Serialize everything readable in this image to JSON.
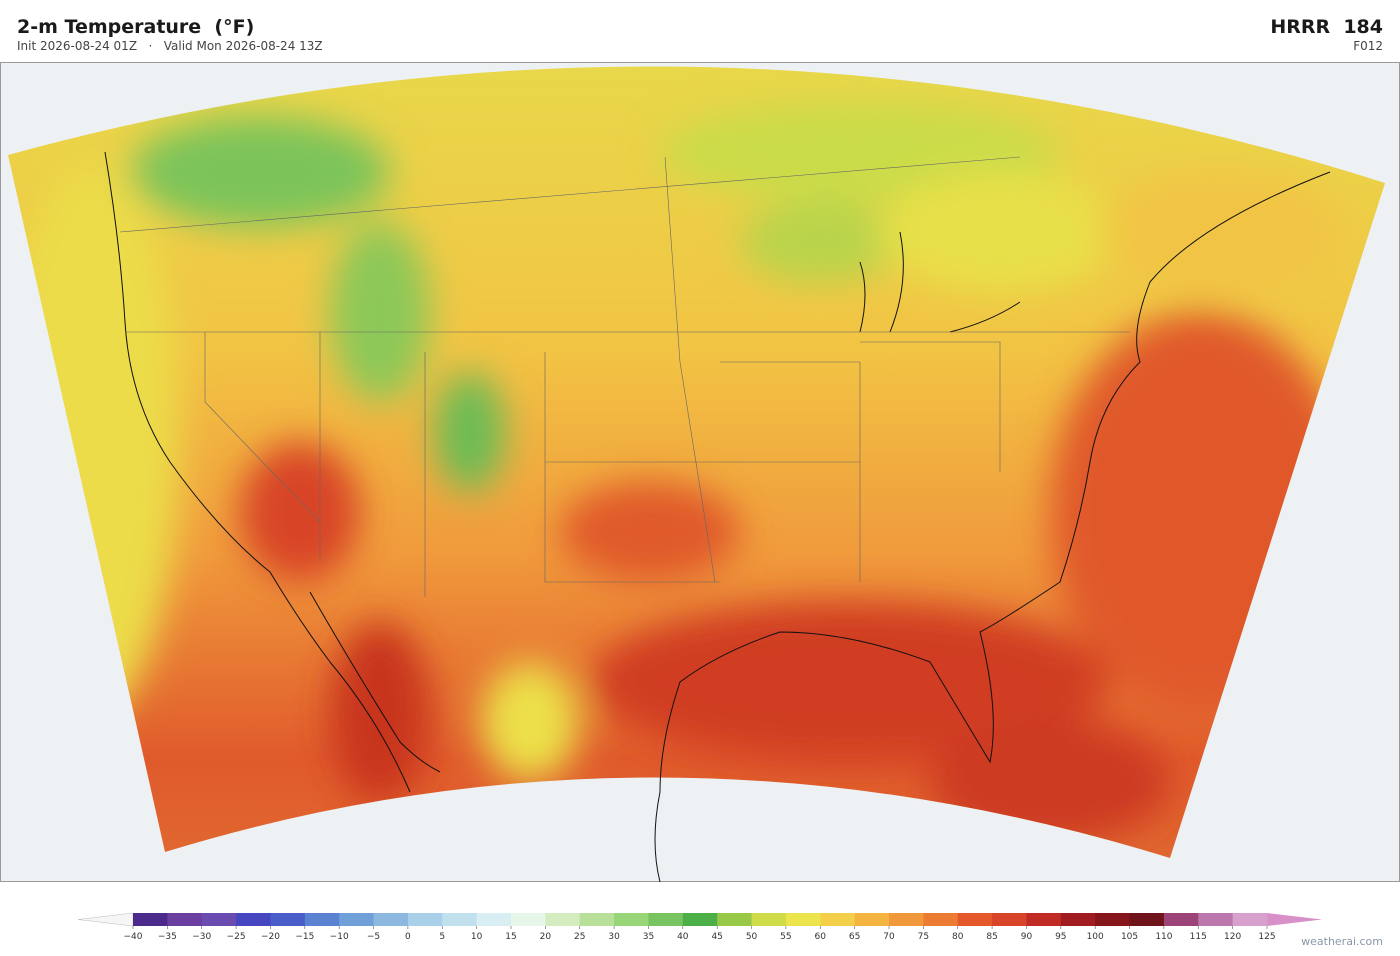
{
  "header": {
    "title": "2-m Temperature  (°F)",
    "subtitle": "Init 2026-08-24 01Z   ·   Valid Mon 2026-08-24 13Z",
    "model": "HRRR  184",
    "forecast_hour": "F012"
  },
  "colorbar": {
    "ticks": [
      {
        "value": -40,
        "label": "−40"
      },
      {
        "value": -35,
        "label": "−35"
      },
      {
        "value": -30,
        "label": "−30"
      },
      {
        "value": -25,
        "label": "−25"
      },
      {
        "value": -20,
        "label": "−20"
      },
      {
        "value": -15,
        "label": "−15"
      },
      {
        "value": -10,
        "label": "−10"
      },
      {
        "value": -5,
        "label": "−5"
      },
      0,
      5,
      10,
      15,
      20,
      25,
      30,
      35,
      40,
      45,
      50,
      55,
      60,
      65,
      70,
      75,
      80,
      85,
      90,
      95,
      100,
      105,
      110,
      115,
      120,
      125
    ],
    "colors": [
      "#4b2a8c",
      "#6a3fa0",
      "#6a4cb0",
      "#4646c0",
      "#4a5cc8",
      "#5a82d0",
      "#70a0d8",
      "#8cb8e0",
      "#a8d0e8",
      "#c0e0ee",
      "#d8eef2",
      "#e6f6e8",
      "#d4ecc0",
      "#b8e098",
      "#98d478",
      "#78c460",
      "#4caf48",
      "#98c848",
      "#cedc48",
      "#ece44c",
      "#f4d04a",
      "#f4b442",
      "#f0983c",
      "#ec7c34",
      "#e4582c",
      "#d84428",
      "#c02c24",
      "#a01c20",
      "#84161c",
      "#70141c",
      "#9c4478",
      "#bc78ac",
      "#d8a0cc"
    ],
    "under_color": "#f6f6f6",
    "over_color": "#d890c8"
  },
  "watermark": "weatherai.com"
}
